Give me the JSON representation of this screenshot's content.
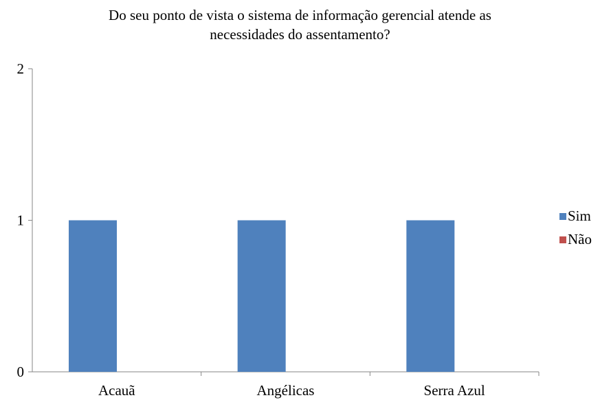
{
  "chart_data": {
    "type": "bar",
    "title_lines": [
      "Do seu ponto de vista o sistema de informação gerencial atende as",
      "necessidades do assentamento?"
    ],
    "categories": [
      "Acauã",
      "Angélicas",
      "Serra Azul"
    ],
    "series": [
      {
        "name": "Sim",
        "values": [
          1,
          1,
          1
        ],
        "color": "#4f81bd"
      },
      {
        "name": "Não",
        "values": [
          0,
          0,
          0
        ],
        "color": "#c0504d"
      }
    ],
    "y_ticks": [
      "0",
      "1",
      "2"
    ],
    "ylim": [
      0,
      2
    ],
    "grid": false,
    "legend_position": "right"
  }
}
